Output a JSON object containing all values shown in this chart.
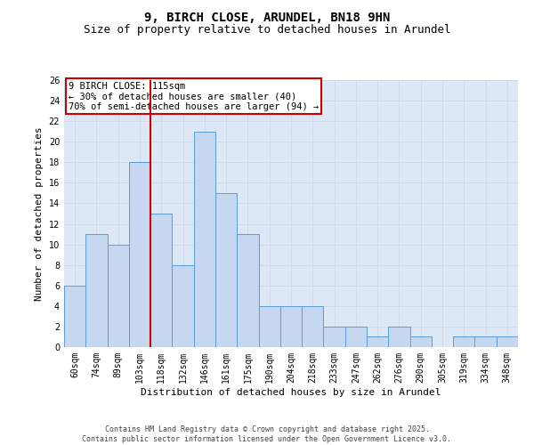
{
  "title": "9, BIRCH CLOSE, ARUNDEL, BN18 9HN",
  "subtitle": "Size of property relative to detached houses in Arundel",
  "xlabel": "Distribution of detached houses by size in Arundel",
  "ylabel": "Number of detached properties",
  "bins": [
    "60sqm",
    "74sqm",
    "89sqm",
    "103sqm",
    "118sqm",
    "132sqm",
    "146sqm",
    "161sqm",
    "175sqm",
    "190sqm",
    "204sqm",
    "218sqm",
    "233sqm",
    "247sqm",
    "262sqm",
    "276sqm",
    "290sqm",
    "305sqm",
    "319sqm",
    "334sqm",
    "348sqm"
  ],
  "values": [
    6,
    11,
    10,
    18,
    13,
    8,
    21,
    15,
    11,
    4,
    4,
    4,
    2,
    2,
    1,
    2,
    1,
    0,
    1,
    1,
    1
  ],
  "bar_color": "#c5d8f0",
  "bar_edge_color": "#5b9bd5",
  "vline_x_index": 4,
  "vline_color": "#cc0000",
  "annotation_text": "9 BIRCH CLOSE: 115sqm\n← 30% of detached houses are smaller (40)\n70% of semi-detached houses are larger (94) →",
  "annotation_box_color": "#cc0000",
  "ylim": [
    0,
    26
  ],
  "yticks": [
    0,
    2,
    4,
    6,
    8,
    10,
    12,
    14,
    16,
    18,
    20,
    22,
    24,
    26
  ],
  "grid_color": "#d0d8e8",
  "background_color": "#dce8f5",
  "footer_text": "Contains HM Land Registry data © Crown copyright and database right 2025.\nContains public sector information licensed under the Open Government Licence v3.0.",
  "title_fontsize": 10,
  "subtitle_fontsize": 9,
  "xlabel_fontsize": 8,
  "ylabel_fontsize": 8,
  "tick_fontsize": 7,
  "annotation_fontsize": 7.5,
  "footer_fontsize": 6
}
